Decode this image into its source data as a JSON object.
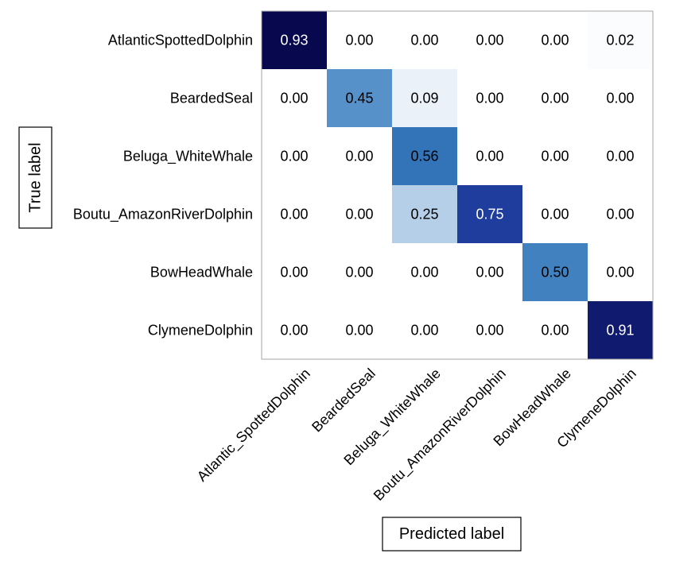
{
  "chart_data": {
    "type": "heatmap",
    "title": "",
    "xlabel": "Predicted label",
    "ylabel": "True label",
    "row_labels": [
      "AtlanticSpottedDolphin",
      "BeardedSeal",
      "Beluga_WhiteWhale",
      "Boutu_AmazonRiverDolphin",
      "BowHeadWhale",
      "ClymeneDolphin"
    ],
    "col_labels": [
      "Atlantic_SpottedDolphin",
      "BeardedSeal",
      "Beluga_WhiteWhale",
      "Boutu_AmazonRiverDolphin",
      "BowHeadWhale",
      "ClymeneDolphin"
    ],
    "values": [
      [
        0.93,
        0.0,
        0.0,
        0.0,
        0.0,
        0.02
      ],
      [
        0.0,
        0.45,
        0.09,
        0.0,
        0.0,
        0.0
      ],
      [
        0.0,
        0.0,
        0.56,
        0.0,
        0.0,
        0.0
      ],
      [
        0.0,
        0.0,
        0.25,
        0.75,
        0.0,
        0.0
      ],
      [
        0.0,
        0.0,
        0.0,
        0.0,
        0.5,
        0.0
      ],
      [
        0.0,
        0.0,
        0.0,
        0.0,
        0.0,
        0.91
      ]
    ],
    "value_format": "0.00",
    "colormap": "Blues",
    "colors": {
      "cell_0.93": "#08084e",
      "cell_0.91": "#13237e",
      "cell_0.75": "#1d3a9b",
      "cell_0.56": "#2c67b1",
      "cell_0.50": "#2b6cb3",
      "cell_0.45": "#3171b5",
      "cell_low": "#ffffff",
      "frame": "#a6a6a6",
      "label_box_border": "#000000"
    },
    "grid": false
  }
}
